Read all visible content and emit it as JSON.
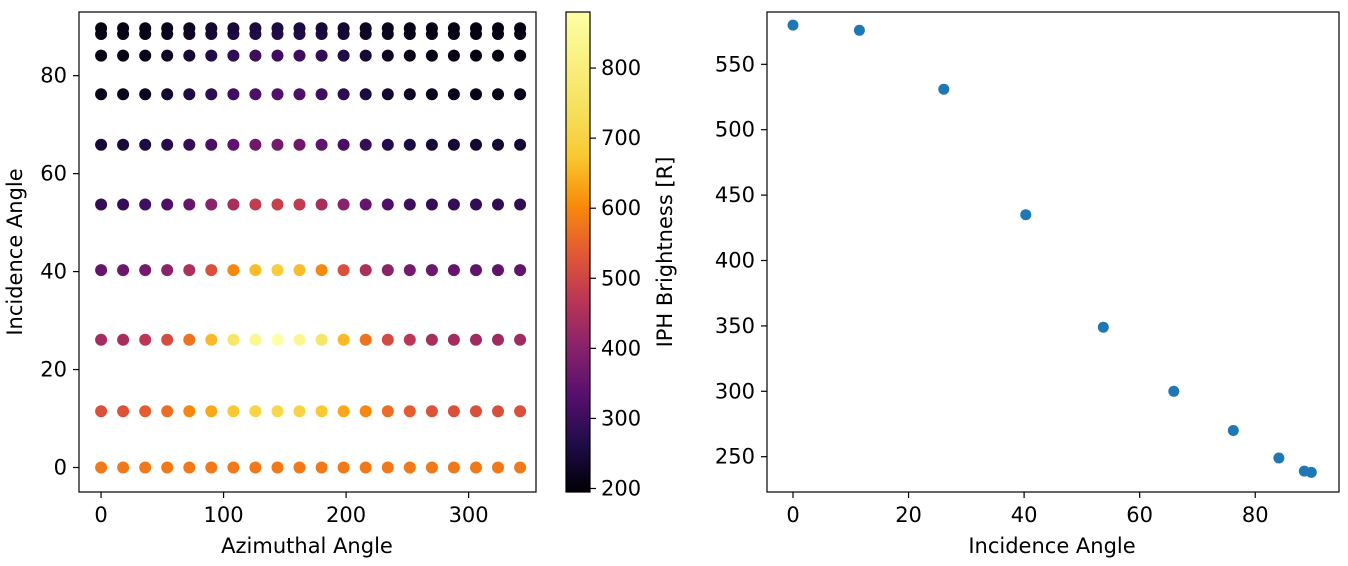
{
  "chart_data": [
    {
      "type": "scatter",
      "xlabel": "Azimuthal Angle",
      "ylabel": "Incidence Angle",
      "xlim": [
        -18,
        355
      ],
      "ylim": [
        -5,
        93
      ],
      "xticks": [
        0,
        100,
        200,
        300
      ],
      "yticks": [
        0,
        20,
        40,
        60,
        80
      ],
      "x": [
        0,
        18,
        36,
        54,
        72,
        90,
        108,
        126,
        144,
        162,
        180,
        198,
        216,
        234,
        252,
        270,
        288,
        306,
        324,
        342
      ],
      "y": [
        0,
        11.5,
        26.1,
        40.3,
        53.7,
        65.9,
        76.2,
        84.1,
        88.5,
        89.7
      ],
      "values": [
        [
          580,
          580,
          580,
          580,
          580,
          580,
          580,
          580,
          580,
          580,
          580,
          580,
          580,
          580,
          580,
          580,
          580,
          580,
          580,
          580
        ],
        [
          522,
          526,
          542,
          564,
          600,
          637,
          675,
          704,
          714,
          704,
          675,
          637,
          600,
          564,
          542,
          526,
          522,
          520,
          518,
          520
        ],
        [
          438,
          445,
          470,
          510,
          572,
          657,
          760,
          845,
          880,
          845,
          760,
          657,
          572,
          510,
          470,
          445,
          438,
          432,
          430,
          432
        ],
        [
          355,
          360,
          375,
          405,
          450,
          520,
          600,
          660,
          685,
          660,
          600,
          520,
          450,
          405,
          375,
          360,
          355,
          350,
          348,
          350
        ],
        [
          290,
          294,
          305,
          325,
          355,
          400,
          445,
          480,
          490,
          480,
          445,
          400,
          355,
          325,
          305,
          294,
          290,
          288,
          286,
          288
        ],
        [
          245,
          248,
          258,
          272,
          292,
          318,
          345,
          368,
          375,
          368,
          345,
          318,
          292,
          272,
          258,
          248,
          245,
          243,
          242,
          243
        ],
        [
          215,
          217,
          225,
          238,
          258,
          282,
          306,
          322,
          328,
          322,
          306,
          282,
          258,
          238,
          225,
          217,
          215,
          213,
          212,
          213
        ],
        [
          210,
          212,
          218,
          228,
          245,
          265,
          285,
          300,
          305,
          300,
          285,
          265,
          245,
          228,
          218,
          212,
          210,
          209,
          208,
          209
        ],
        [
          210,
          211,
          215,
          222,
          232,
          245,
          258,
          266,
          270,
          266,
          258,
          245,
          232,
          222,
          215,
          211,
          210,
          209,
          208,
          209
        ],
        [
          210,
          211,
          214,
          220,
          228,
          238,
          248,
          255,
          258,
          255,
          248,
          238,
          228,
          220,
          214,
          211,
          210,
          209,
          208,
          209
        ]
      ],
      "colorbar": {
        "label": "IPH Brightness [R]",
        "range": [
          195,
          880
        ],
        "ticks": [
          200,
          300,
          400,
          500,
          600,
          700,
          800
        ],
        "colormap": "inferno"
      }
    },
    {
      "type": "scatter",
      "xlabel": "Incidence Angle",
      "ylabel": "",
      "xlim": [
        -4.5,
        94.5
      ],
      "ylim": [
        223,
        590
      ],
      "xticks": [
        0,
        20,
        40,
        60,
        80
      ],
      "yticks": [
        250,
        300,
        350,
        400,
        450,
        500,
        550
      ],
      "color": "#1f77b4",
      "points": [
        {
          "x": 0,
          "y": 580
        },
        {
          "x": 11.5,
          "y": 576
        },
        {
          "x": 26.1,
          "y": 531
        },
        {
          "x": 40.3,
          "y": 435
        },
        {
          "x": 53.7,
          "y": 349
        },
        {
          "x": 65.9,
          "y": 300
        },
        {
          "x": 76.2,
          "y": 270
        },
        {
          "x": 84.1,
          "y": 249
        },
        {
          "x": 88.5,
          "y": 239
        },
        {
          "x": 89.7,
          "y": 238
        }
      ]
    }
  ]
}
